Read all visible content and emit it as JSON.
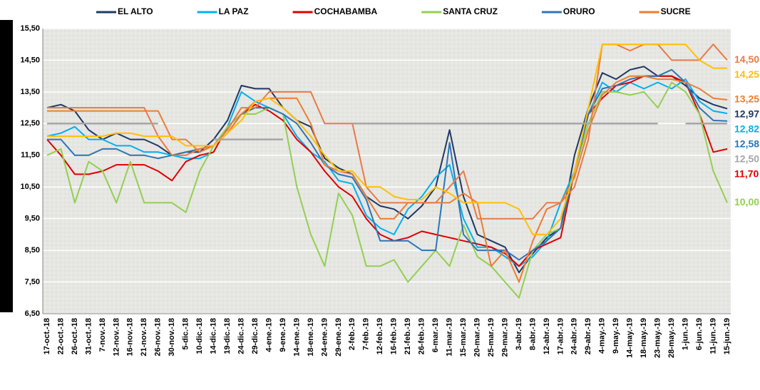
{
  "chart_data": {
    "type": "line",
    "categories": [
      "17-oct.-18",
      "22-oct.-18",
      "26-oct.-18",
      "31-oct.-18",
      "7-nov.-18",
      "12-nov.-18",
      "16-nov.-18",
      "21-nov.-18",
      "26-nov.-18",
      "30-nov.-18",
      "5-dic.-18",
      "10-dic.-18",
      "14-dic.-18",
      "19-dic.-18",
      "24-dic.-18",
      "29-dic.-18",
      "4-ene.-19",
      "9-ene.-19",
      "14-ene.-19",
      "18-ene.-19",
      "24-ene.-19",
      "29-ene.-19",
      "2-feb.-19",
      "7-feb.-19",
      "12-feb.-19",
      "16-feb.-19",
      "21-feb.-19",
      "26-feb.-19",
      "6-mar.-19",
      "11-mar.-19",
      "15-mar.-19",
      "20-mar.-19",
      "25-mar.-19",
      "29-mar.-19",
      "3-abr.-19",
      "8-abr.-19",
      "12-abr.-19",
      "17-abr.-19",
      "24-abr.-19",
      "29-abr.-19",
      "4-may.-19",
      "9-may.-19",
      "14-may.-19",
      "18-may.-19",
      "23-may.-19",
      "28-may.-19",
      "1-jun.-19",
      "6-jun.-19",
      "11-jun.-19",
      "15-jun.-19"
    ],
    "ylim": [
      6.5,
      15.5
    ],
    "yticks": [
      {
        "value": 6.5,
        "label": "6,50"
      },
      {
        "value": 7.5,
        "label": "7,50"
      },
      {
        "value": 8.5,
        "label": "8,50"
      },
      {
        "value": 9.5,
        "label": "9,50"
      },
      {
        "value": 10.5,
        "label": "10,50"
      },
      {
        "value": 11.5,
        "label": "11,50"
      },
      {
        "value": 12.5,
        "label": "12,50"
      },
      {
        "value": 13.5,
        "label": "13,50"
      },
      {
        "value": 14.5,
        "label": "14,50"
      },
      {
        "value": 15.5,
        "label": "15,50"
      }
    ],
    "grid": true,
    "series": [
      {
        "name": "EL ALTO",
        "color": "#1f3864",
        "values": [
          13.0,
          13.1,
          12.9,
          12.3,
          12.0,
          12.2,
          12.0,
          12.0,
          11.8,
          11.5,
          11.6,
          11.6,
          12.0,
          12.6,
          13.7,
          13.6,
          13.6,
          13.0,
          12.6,
          12.4,
          11.4,
          11.1,
          10.9,
          10.2,
          9.9,
          9.8,
          9.5,
          9.9,
          10.5,
          12.3,
          10.2,
          9.0,
          8.8,
          8.6,
          7.8,
          8.4,
          8.9,
          9.2,
          11.5,
          13.0,
          14.1,
          13.9,
          14.2,
          14.3,
          14.0,
          14.0,
          13.7,
          13.3,
          13.1,
          12.97
        ],
        "value_labels": [
          null,
          null,
          null,
          null,
          null,
          null,
          null,
          null,
          null,
          null,
          null,
          null,
          null,
          null,
          null,
          null,
          null,
          null,
          null,
          null,
          null,
          null,
          null,
          null,
          null,
          null,
          null,
          null,
          null,
          null,
          null,
          null,
          null,
          null,
          null,
          null,
          null,
          null,
          null,
          null,
          null,
          null,
          null,
          null,
          null,
          null,
          null,
          null,
          null,
          "12,97"
        ]
      },
      {
        "name": "LA PAZ",
        "color": "#00b0f0",
        "values": [
          12.1,
          12.2,
          12.4,
          12.0,
          12.0,
          11.8,
          11.8,
          11.6,
          11.6,
          11.5,
          11.4,
          11.4,
          11.6,
          12.4,
          13.5,
          13.2,
          13.0,
          12.8,
          12.1,
          11.6,
          11.3,
          10.7,
          10.6,
          9.6,
          9.2,
          9.0,
          9.8,
          10.2,
          10.8,
          11.2,
          9.5,
          8.6,
          8.6,
          8.3,
          8.0,
          8.3,
          8.8,
          10.0,
          11.0,
          12.8,
          13.8,
          13.5,
          13.8,
          13.6,
          13.8,
          13.6,
          13.9,
          13.2,
          12.9,
          12.82
        ],
        "value_labels": [
          null,
          null,
          null,
          null,
          null,
          null,
          null,
          null,
          null,
          null,
          null,
          null,
          null,
          null,
          null,
          null,
          null,
          null,
          null,
          null,
          null,
          null,
          null,
          null,
          null,
          null,
          null,
          null,
          null,
          null,
          null,
          null,
          null,
          null,
          null,
          null,
          null,
          null,
          null,
          null,
          null,
          null,
          null,
          null,
          null,
          null,
          null,
          null,
          null,
          "12,82"
        ]
      },
      {
        "name": "COCHABAMBA",
        "color": "#e00000",
        "values": [
          12.0,
          11.5,
          10.9,
          10.9,
          11.0,
          11.2,
          11.2,
          11.2,
          11.0,
          10.7,
          11.3,
          11.5,
          11.6,
          12.4,
          12.8,
          13.1,
          12.9,
          12.6,
          12.0,
          11.6,
          11.0,
          10.5,
          10.2,
          9.5,
          9.0,
          8.8,
          8.9,
          9.1,
          9.0,
          8.9,
          8.8,
          8.7,
          8.6,
          8.4,
          8.0,
          8.5,
          8.7,
          8.9,
          11.0,
          12.8,
          13.3,
          13.7,
          13.8,
          14.0,
          14.0,
          14.0,
          13.8,
          12.8,
          11.6,
          11.7
        ],
        "value_labels": [
          null,
          null,
          null,
          null,
          null,
          null,
          null,
          null,
          null,
          null,
          null,
          null,
          null,
          null,
          null,
          null,
          null,
          null,
          null,
          null,
          null,
          null,
          null,
          null,
          null,
          null,
          null,
          null,
          null,
          null,
          null,
          null,
          null,
          null,
          null,
          null,
          null,
          null,
          null,
          null,
          null,
          null,
          null,
          null,
          null,
          null,
          null,
          null,
          null,
          "11,70"
        ]
      },
      {
        "name": "SANTA CRUZ",
        "color": "#92d050",
        "values": [
          11.5,
          11.7,
          10.0,
          11.3,
          11.0,
          10.0,
          11.3,
          10.0,
          10.0,
          10.0,
          9.7,
          11.0,
          11.8,
          12.4,
          12.8,
          12.8,
          13.0,
          12.8,
          10.5,
          9.0,
          8.0,
          10.3,
          9.6,
          8.0,
          8.0,
          8.2,
          7.5,
          8.0,
          8.5,
          8.0,
          9.3,
          8.3,
          8.0,
          7.5,
          7.0,
          8.5,
          9.0,
          9.2,
          11.0,
          12.5,
          13.5,
          13.5,
          13.4,
          13.5,
          13.0,
          13.8,
          13.5,
          12.8,
          11.0,
          10.0
        ],
        "value_labels": [
          null,
          null,
          null,
          null,
          null,
          null,
          null,
          null,
          null,
          null,
          null,
          null,
          null,
          null,
          null,
          null,
          null,
          null,
          null,
          null,
          null,
          null,
          null,
          null,
          null,
          null,
          null,
          null,
          null,
          null,
          null,
          null,
          null,
          null,
          null,
          null,
          null,
          null,
          null,
          null,
          null,
          null,
          null,
          null,
          null,
          null,
          null,
          null,
          null,
          "10,00"
        ]
      },
      {
        "name": "ORURO",
        "color": "#2e75b6",
        "values": [
          12.0,
          12.0,
          11.5,
          11.5,
          11.7,
          11.7,
          11.5,
          11.5,
          11.4,
          11.5,
          11.6,
          11.7,
          11.8,
          12.2,
          12.8,
          13.0,
          13.0,
          12.8,
          12.5,
          11.9,
          11.2,
          10.9,
          10.8,
          10.1,
          8.8,
          8.8,
          8.8,
          8.5,
          8.5,
          11.9,
          9.0,
          8.5,
          8.5,
          8.5,
          8.2,
          8.5,
          8.8,
          9.2,
          11.0,
          12.8,
          13.6,
          13.7,
          13.9,
          14.0,
          14.0,
          14.2,
          13.8,
          13.0,
          12.6,
          12.58
        ],
        "value_labels": [
          null,
          null,
          null,
          null,
          null,
          null,
          null,
          null,
          null,
          null,
          null,
          null,
          null,
          null,
          null,
          null,
          null,
          null,
          null,
          null,
          null,
          null,
          null,
          null,
          null,
          null,
          null,
          null,
          null,
          null,
          null,
          null,
          null,
          null,
          null,
          null,
          null,
          null,
          null,
          null,
          null,
          null,
          null,
          null,
          null,
          null,
          null,
          null,
          null,
          "12,58"
        ]
      },
      {
        "name": "SUCRE",
        "color": "#ed7d31",
        "values": [
          12.9,
          12.9,
          12.9,
          12.9,
          12.9,
          12.9,
          12.9,
          12.9,
          12.9,
          12.0,
          12.0,
          11.6,
          11.8,
          12.2,
          12.8,
          13.2,
          13.3,
          13.3,
          13.3,
          12.5,
          11.2,
          11.0,
          10.9,
          10.2,
          9.5,
          9.5,
          10.0,
          10.0,
          10.0,
          10.0,
          10.3,
          10.0,
          8.0,
          8.5,
          7.5,
          8.8,
          9.8,
          10.0,
          10.8,
          12.3,
          13.4,
          13.8,
          14.0,
          14.0,
          13.9,
          13.9,
          13.8,
          13.6,
          13.3,
          13.25
        ],
        "value_labels": [
          null,
          null,
          null,
          null,
          null,
          null,
          null,
          null,
          null,
          null,
          null,
          null,
          null,
          null,
          null,
          null,
          null,
          null,
          null,
          null,
          null,
          null,
          null,
          null,
          null,
          null,
          null,
          null,
          null,
          null,
          null,
          null,
          null,
          null,
          null,
          null,
          null,
          null,
          null,
          null,
          null,
          null,
          null,
          null,
          null,
          null,
          null,
          null,
          null,
          "13,25"
        ]
      },
      {
        "color": "#e97a45",
        "values": [
          13.0,
          13.0,
          13.0,
          13.0,
          13.0,
          13.0,
          13.0,
          13.0,
          12.1,
          11.5,
          11.5,
          11.7,
          11.8,
          12.3,
          13.0,
          13.0,
          13.5,
          13.5,
          13.5,
          13.5,
          12.5,
          12.5,
          12.5,
          10.5,
          10.0,
          10.0,
          10.0,
          10.0,
          10.0,
          10.5,
          11.0,
          9.5,
          9.5,
          9.5,
          9.5,
          9.5,
          10.0,
          10.0,
          10.5,
          12.0,
          15.0,
          15.0,
          14.8,
          15.0,
          15.0,
          14.5,
          14.5,
          14.5,
          15.0,
          14.5
        ],
        "value_labels": [
          null,
          null,
          null,
          null,
          null,
          null,
          null,
          null,
          null,
          null,
          null,
          null,
          null,
          null,
          null,
          null,
          null,
          null,
          null,
          null,
          null,
          null,
          null,
          null,
          null,
          null,
          null,
          null,
          null,
          null,
          null,
          null,
          null,
          null,
          null,
          null,
          null,
          null,
          null,
          null,
          null,
          null,
          null,
          null,
          null,
          null,
          null,
          null,
          null,
          "14,50"
        ]
      },
      {
        "color": "#ffc000",
        "values": [
          12.1,
          12.1,
          12.1,
          12.1,
          12.1,
          12.2,
          12.2,
          12.1,
          12.1,
          12.1,
          11.8,
          11.8,
          11.8,
          12.2,
          12.6,
          13.2,
          13.3,
          13.0,
          12.6,
          12.1,
          11.5,
          11.0,
          11.0,
          10.5,
          10.5,
          10.2,
          10.1,
          10.1,
          10.5,
          10.3,
          10.0,
          10.0,
          10.0,
          10.0,
          9.8,
          9.0,
          9.0,
          9.5,
          11.0,
          13.0,
          15.0,
          15.0,
          15.0,
          15.0,
          15.0,
          15.0,
          15.0,
          14.5,
          14.25,
          14.25
        ],
        "value_labels": [
          null,
          null,
          null,
          null,
          null,
          null,
          null,
          null,
          null,
          null,
          null,
          null,
          null,
          null,
          null,
          null,
          null,
          null,
          null,
          null,
          null,
          null,
          null,
          null,
          null,
          null,
          null,
          null,
          null,
          null,
          null,
          null,
          null,
          null,
          null,
          null,
          null,
          null,
          null,
          null,
          null,
          null,
          null,
          null,
          null,
          null,
          null,
          null,
          null,
          "14,25"
        ]
      },
      {
        "color": "#a6a6a6",
        "values": [
          12.5,
          12.5,
          12.5,
          12.5,
          12.5,
          12.5,
          12.5,
          12.5,
          12.5,
          null,
          null,
          null,
          12.0,
          12.0,
          12.0,
          12.0,
          12.0,
          12.0,
          null,
          null,
          null,
          null,
          12.5,
          12.5,
          12.5,
          12.5,
          12.5,
          12.5,
          12.5,
          12.5,
          12.5,
          12.5,
          12.5,
          12.5,
          12.5,
          12.5,
          12.5,
          12.5,
          12.5,
          12.5,
          12.5,
          12.5,
          12.5,
          12.5,
          12.5,
          null,
          12.5,
          12.5,
          12.5,
          12.5
        ],
        "value_labels": [
          null,
          null,
          null,
          null,
          null,
          null,
          null,
          null,
          null,
          null,
          null,
          null,
          null,
          null,
          null,
          null,
          null,
          null,
          null,
          null,
          null,
          null,
          null,
          null,
          null,
          null,
          null,
          null,
          null,
          null,
          null,
          null,
          null,
          null,
          null,
          null,
          null,
          null,
          null,
          null,
          null,
          null,
          null,
          null,
          null,
          null,
          null,
          null,
          null,
          "12,50"
        ]
      }
    ]
  }
}
